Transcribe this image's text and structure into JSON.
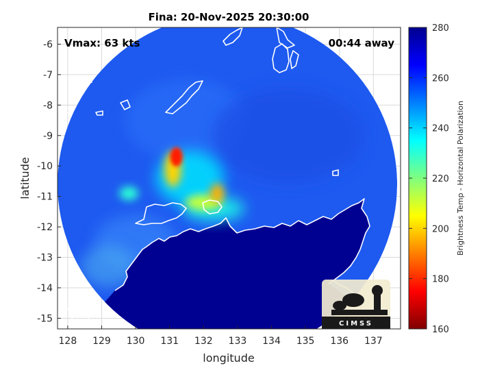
{
  "chart_data": {
    "type": "heatmap",
    "title": "Fina: 20-Nov-2025 20:30:00",
    "xlabel": "longitude",
    "ylabel": "latitude",
    "xlim": [
      127.7,
      137.8
    ],
    "ylim": [
      -15.35,
      -5.45
    ],
    "xticks": [
      128,
      129,
      130,
      131,
      132,
      133,
      134,
      135,
      136,
      137
    ],
    "xtick_labels": [
      "128",
      "129",
      "130",
      "131",
      "132",
      "133",
      "134",
      "135",
      "136",
      "137"
    ],
    "yticks": [
      -6,
      -7,
      -8,
      -9,
      -10,
      -11,
      -12,
      -13,
      -14,
      -15
    ],
    "ytick_labels": [
      "-6",
      "-7",
      "-8",
      "-9",
      "-10",
      "-11",
      "-12",
      "-13",
      "-14",
      "-15"
    ],
    "grid": true,
    "colorbar": {
      "label": "Brightness Temp - Horizontal Polarization",
      "range": [
        160,
        280
      ],
      "ticks": [
        160,
        180,
        200,
        220,
        240,
        260,
        280
      ],
      "tick_labels": [
        "160",
        "180",
        "200",
        "220",
        "240",
        "260",
        "280"
      ],
      "colormap": "jet"
    },
    "annotations": {
      "vmax": "Vmax: 63 kts",
      "time_away": "00:44 away"
    },
    "swath": {
      "center": [
        132.7,
        -10.6
      ],
      "radius_deg": 5.0
    },
    "features": [
      {
        "name": "deep-convection-core",
        "lon": 131.2,
        "lat": -9.7,
        "value": 178
      },
      {
        "name": "convection-band-north",
        "lon": 131.1,
        "lat": -10.1,
        "value": 200
      },
      {
        "name": "band-east",
        "lon": 132.4,
        "lat": -10.9,
        "value": 196
      },
      {
        "name": "band-south",
        "lon": 132.0,
        "lat": -11.2,
        "value": 212
      },
      {
        "name": "outer-band-west",
        "lon": 129.8,
        "lat": -10.9,
        "value": 230
      },
      {
        "name": "land-warm-area",
        "lon": 133.0,
        "lat": -14.0,
        "value": 278
      }
    ]
  },
  "logo": {
    "text": "CIMSS"
  }
}
